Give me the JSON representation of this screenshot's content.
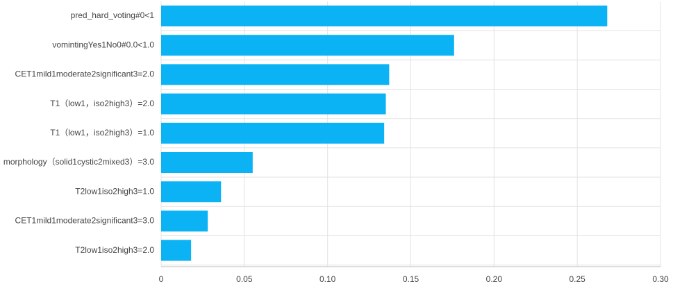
{
  "chart_data": {
    "type": "bar",
    "orientation": "horizontal",
    "categories": [
      "pred_hard_voting#0<1",
      "vomintingYes1No0#0.0<1.0",
      "CET1mild1moderate2significant3=2.0",
      "T1（low1，iso2high3）=2.0",
      "T1（low1，iso2high3）=1.0",
      "morphology（solid1cystic2mixed3）=3.0",
      "T2low1iso2high3=1.0",
      "CET1mild1moderate2significant3=3.0",
      "T2low1iso2high3=2.0"
    ],
    "values": [
      0.268,
      0.176,
      0.137,
      0.135,
      0.134,
      0.055,
      0.036,
      0.028,
      0.018
    ],
    "color": "#0bb3f4",
    "xlim": [
      0,
      0.3
    ],
    "xticks": [
      0,
      {
        "value": 0.05,
        "label": "0.05"
      },
      {
        "value": 0.1,
        "label": "0.10"
      },
      {
        "value": 0.15,
        "label": "0.15"
      },
      {
        "value": 0.2,
        "label": "0.20"
      },
      {
        "value": 0.25,
        "label": "0.25"
      },
      {
        "value": 0.3,
        "label": "0.30"
      }
    ],
    "grid": true
  }
}
